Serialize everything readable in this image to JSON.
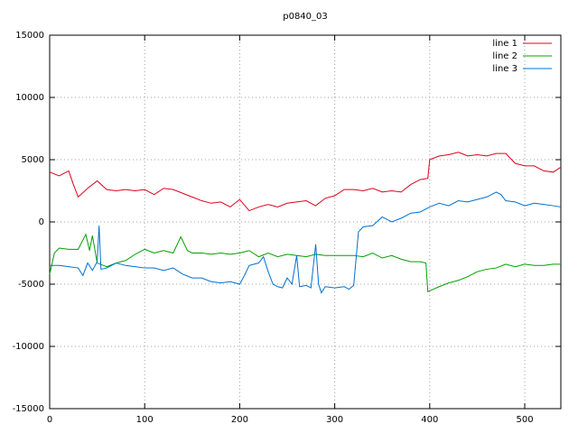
{
  "chart_data": {
    "type": "line",
    "title": "p0840_03",
    "xlim": [
      0,
      538
    ],
    "xticks": [
      0,
      100,
      200,
      300,
      400,
      500
    ],
    "ylim": [
      -15000,
      15000
    ],
    "yticks": [
      -15000,
      -10000,
      -5000,
      0,
      5000,
      10000,
      15000
    ],
    "grid": true,
    "legend": "top-right",
    "series": [
      {
        "name": "line 1",
        "color": "#e0001b",
        "x": [
          0,
          10,
          20,
          25,
          30,
          40,
          50,
          60,
          70,
          80,
          90,
          100,
          110,
          120,
          130,
          140,
          150,
          160,
          170,
          180,
          190,
          200,
          210,
          220,
          230,
          240,
          250,
          260,
          270,
          280,
          290,
          300,
          310,
          320,
          330,
          340,
          350,
          360,
          370,
          380,
          390,
          398,
          400,
          410,
          420,
          430,
          440,
          450,
          460,
          470,
          480,
          490,
          500,
          510,
          520,
          530,
          538
        ],
        "values": [
          4000,
          3700,
          4100,
          3000,
          2000,
          2700,
          3300,
          2600,
          2500,
          2600,
          2500,
          2600,
          2200,
          2700,
          2600,
          2300,
          2000,
          1700,
          1500,
          1600,
          1200,
          1800,
          900,
          1200,
          1400,
          1200,
          1500,
          1600,
          1700,
          1300,
          1900,
          2100,
          2600,
          2600,
          2500,
          2700,
          2400,
          2500,
          2400,
          3000,
          3400,
          3500,
          5000,
          5300,
          5400,
          5600,
          5300,
          5400,
          5300,
          5500,
          5500,
          4700,
          4500,
          4500,
          4100,
          4000,
          4400
        ]
      },
      {
        "name": "line 2",
        "color": "#00a000",
        "x": [
          0,
          5,
          10,
          20,
          30,
          38,
          42,
          45,
          50,
          60,
          70,
          80,
          90,
          100,
          110,
          120,
          130,
          138,
          145,
          150,
          160,
          170,
          180,
          190,
          200,
          210,
          220,
          230,
          240,
          250,
          260,
          270,
          280,
          290,
          300,
          310,
          320,
          330,
          340,
          350,
          360,
          370,
          380,
          390,
          396,
          398,
          410,
          420,
          430,
          440,
          450,
          460,
          470,
          480,
          490,
          500,
          510,
          520,
          530,
          538
        ],
        "values": [
          -4200,
          -2500,
          -2100,
          -2200,
          -2200,
          -1000,
          -2300,
          -1100,
          -3300,
          -3600,
          -3300,
          -3100,
          -2600,
          -2200,
          -2500,
          -2300,
          -2500,
          -1200,
          -2300,
          -2500,
          -2500,
          -2600,
          -2500,
          -2600,
          -2500,
          -2300,
          -2800,
          -2500,
          -2800,
          -2600,
          -2700,
          -2800,
          -2600,
          -2700,
          -2700,
          -2700,
          -2700,
          -2800,
          -2500,
          -2900,
          -2700,
          -3000,
          -3200,
          -3200,
          -3300,
          -5600,
          -5200,
          -4900,
          -4700,
          -4400,
          -4000,
          -3800,
          -3700,
          -3400,
          -3600,
          -3400,
          -3500,
          -3500,
          -3400,
          -3400
        ]
      },
      {
        "name": "line 3",
        "color": "#0070d0",
        "x": [
          0,
          10,
          20,
          30,
          35,
          40,
          45,
          50,
          52,
          54,
          60,
          70,
          80,
          90,
          100,
          110,
          120,
          130,
          140,
          150,
          160,
          170,
          180,
          190,
          200,
          205,
          210,
          220,
          225,
          230,
          235,
          240,
          245,
          250,
          255,
          260,
          263,
          270,
          275,
          280,
          283,
          286,
          290,
          300,
          310,
          315,
          320,
          325,
          330,
          340,
          350,
          360,
          370,
          380,
          390,
          400,
          410,
          420,
          430,
          440,
          450,
          460,
          470,
          475,
          480,
          490,
          500,
          510,
          520,
          530,
          538
        ],
        "values": [
          -3500,
          -3500,
          -3600,
          -3700,
          -4300,
          -3300,
          -3900,
          -3200,
          -300,
          -3800,
          -3700,
          -3300,
          -3500,
          -3600,
          -3700,
          -3700,
          -3900,
          -3700,
          -4200,
          -4500,
          -4500,
          -4800,
          -4900,
          -4800,
          -5000,
          -4300,
          -3500,
          -3300,
          -2800,
          -4000,
          -5000,
          -5200,
          -5300,
          -4500,
          -5000,
          -2700,
          -5200,
          -5100,
          -5300,
          -1800,
          -5000,
          -5700,
          -5200,
          -5300,
          -5200,
          -5400,
          -5100,
          -800,
          -400,
          -300,
          400,
          0,
          300,
          700,
          800,
          1200,
          1500,
          1300,
          1700,
          1600,
          1800,
          2000,
          2400,
          2200,
          1700,
          1600,
          1300,
          1500,
          1400,
          1300,
          1200
        ]
      }
    ]
  }
}
